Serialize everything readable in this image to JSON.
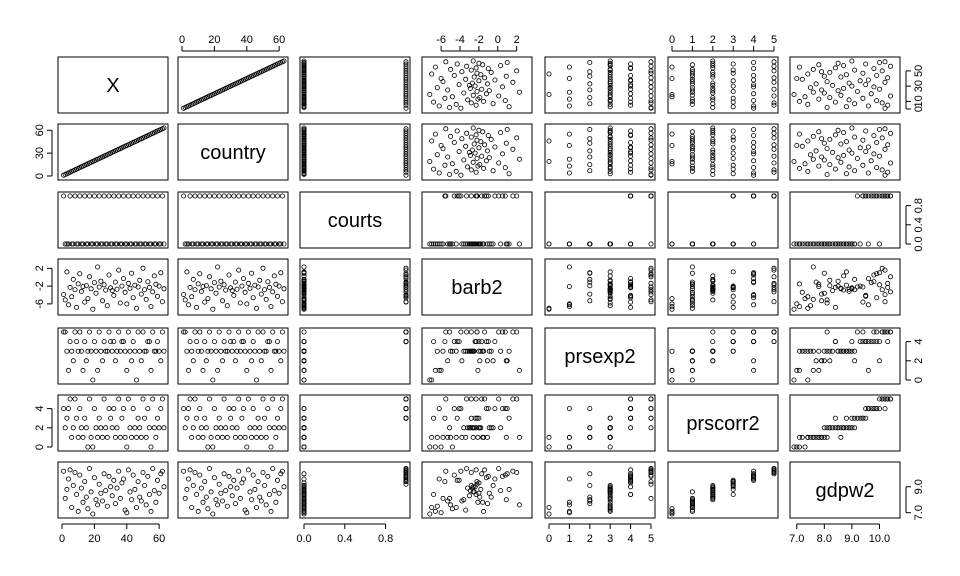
{
  "chart_data": {
    "type": "scatter",
    "subtype": "pairs-matrix",
    "variables": [
      {
        "name": "X",
        "ticks": [
          "0",
          "20",
          "40",
          "60"
        ],
        "tick_values": [
          0,
          20,
          40,
          60
        ],
        "range": [
          0,
          63
        ]
      },
      {
        "name": "country",
        "ticks": [
          "0",
          "20",
          "40",
          "60"
        ],
        "tick_values": [
          0,
          20,
          40,
          60
        ],
        "range": [
          0,
          63
        ]
      },
      {
        "name": "courts",
        "ticks": [
          "0.0",
          "0.4",
          "0.8"
        ],
        "tick_values": [
          0,
          0.4,
          0.8
        ],
        "range": [
          0,
          1
        ]
      },
      {
        "name": "barb2",
        "ticks": [
          "-6",
          "-4",
          "-2",
          "0",
          "2"
        ],
        "tick_values": [
          -6,
          -4,
          -2,
          0,
          2
        ],
        "range": [
          -7.6,
          3.2
        ]
      },
      {
        "name": "prsexp2",
        "ticks": [
          "0",
          "1",
          "2",
          "3",
          "4",
          "5"
        ],
        "tick_values": [
          0,
          1,
          2,
          3,
          4,
          5
        ],
        "range": [
          0,
          5
        ]
      },
      {
        "name": "prscorr2",
        "ticks": [
          "0",
          "1",
          "2",
          "3",
          "4",
          "5"
        ],
        "tick_values": [
          0,
          1,
          2,
          3,
          4,
          5
        ],
        "range": [
          0,
          5
        ]
      },
      {
        "name": "gdpw2",
        "ticks": [
          "7.0",
          "8.0",
          "9.0",
          "10.0"
        ],
        "tick_values": [
          7,
          8,
          9,
          10
        ],
        "range": [
          6.9,
          10.6
        ]
      }
    ],
    "right_axis_ticks": {
      "X": [
        "0",
        "10",
        "30",
        "50"
      ],
      "courts": [
        "0.0",
        "0.4",
        "0.8"
      ],
      "prsexp2": [
        "0",
        "2",
        "4"
      ],
      "gdpw2": [
        "7.0",
        "9.0"
      ]
    },
    "left_axis_ticks": {
      "country": [
        "0",
        "30",
        "60"
      ],
      "barb2": [
        "-6",
        "-2",
        "2"
      ],
      "prscorr2": [
        "0",
        "2",
        "4"
      ]
    },
    "observations": [
      {
        "X": 1,
        "country": 1,
        "courts": 1,
        "barb2": -3.9,
        "prsexp2": 5,
        "prscorr2": 4,
        "gdpw2": 10.2
      },
      {
        "X": 2,
        "country": 2,
        "courts": 0,
        "barb2": -5.1,
        "prsexp2": 5,
        "prscorr2": 2,
        "gdpw2": 8.1
      },
      {
        "X": 3,
        "country": 3,
        "courts": 0,
        "barb2": 1.2,
        "prsexp2": 3,
        "prscorr2": 3,
        "gdpw2": 8.8
      },
      {
        "X": 4,
        "country": 4,
        "courts": 0,
        "barb2": -6.2,
        "prsexp2": 1,
        "prscorr2": 4,
        "gdpw2": 9.6
      },
      {
        "X": 5,
        "country": 5,
        "courts": 1,
        "barb2": -2.3,
        "prsexp2": 4,
        "prscorr2": 5,
        "gdpw2": 10.3
      },
      {
        "X": 6,
        "country": 6,
        "courts": 0,
        "barb2": -4.4,
        "prsexp2": 3,
        "prscorr2": 1,
        "gdpw2": 7.4
      },
      {
        "X": 7,
        "country": 7,
        "courts": 0,
        "barb2": -0.5,
        "prsexp2": 2,
        "prscorr2": 2,
        "gdpw2": 9.1
      },
      {
        "X": 8,
        "country": 8,
        "courts": 1,
        "barb2": -2.8,
        "prsexp2": 5,
        "prscorr2": 5,
        "gdpw2": 10.1
      },
      {
        "X": 9,
        "country": 9,
        "courts": 0,
        "barb2": -6.8,
        "prsexp2": 4,
        "prscorr2": 3,
        "gdpw2": 8.4
      },
      {
        "X": 10,
        "country": 10,
        "courts": 0,
        "barb2": -1.5,
        "prsexp2": 3,
        "prscorr2": 1,
        "gdpw2": 7.1
      },
      {
        "X": 11,
        "country": 11,
        "courts": 1,
        "barb2": 0.8,
        "prsexp2": 5,
        "prscorr2": 4,
        "gdpw2": 9.9
      },
      {
        "X": 12,
        "country": 12,
        "courts": 0,
        "barb2": -3.2,
        "prsexp2": 3,
        "prscorr2": 2,
        "gdpw2": 8.9
      },
      {
        "X": 13,
        "country": 13,
        "courts": 0,
        "barb2": -2.1,
        "prsexp2": 1,
        "prscorr2": 1,
        "gdpw2": 7.8
      },
      {
        "X": 14,
        "country": 14,
        "courts": 1,
        "barb2": -5.6,
        "prsexp2": 4,
        "prscorr2": 3,
        "gdpw2": 9.4
      },
      {
        "X": 15,
        "country": 15,
        "courts": 0,
        "barb2": -1.9,
        "prsexp2": 2,
        "prscorr2": 2,
        "gdpw2": 8.2
      },
      {
        "X": 16,
        "country": 16,
        "courts": 0,
        "barb2": -4.8,
        "prsexp2": 3,
        "prscorr2": 0,
        "gdpw2": 7.3
      },
      {
        "X": 17,
        "country": 17,
        "courts": 1,
        "barb2": 0.1,
        "prsexp2": 5,
        "prscorr2": 5,
        "gdpw2": 10.4
      },
      {
        "X": 18,
        "country": 18,
        "courts": 0,
        "barb2": -2.6,
        "prsexp2": 3,
        "prscorr2": 1,
        "gdpw2": 8.6
      },
      {
        "X": 19,
        "country": 19,
        "courts": 0,
        "barb2": -7.2,
        "prsexp2": 0,
        "prscorr2": 0,
        "gdpw2": 6.9
      },
      {
        "X": 20,
        "country": 20,
        "courts": 1,
        "barb2": -1.2,
        "prsexp2": 4,
        "prscorr2": 4,
        "gdpw2": 9.7
      },
      {
        "X": 21,
        "country": 21,
        "courts": 0,
        "barb2": -3.6,
        "prsexp2": 3,
        "prscorr2": 2,
        "gdpw2": 8.0
      },
      {
        "X": 22,
        "country": 22,
        "courts": 0,
        "barb2": 2.3,
        "prsexp2": 1,
        "prscorr2": 1,
        "gdpw2": 7.6
      },
      {
        "X": 23,
        "country": 23,
        "courts": 1,
        "barb2": -2.2,
        "prsexp2": 5,
        "prscorr2": 3,
        "gdpw2": 9.2
      },
      {
        "X": 24,
        "country": 24,
        "courts": 0,
        "barb2": -0.9,
        "prsexp2": 3,
        "prscorr2": 2,
        "gdpw2": 8.5
      },
      {
        "X": 25,
        "country": 25,
        "courts": 0,
        "barb2": -5.3,
        "prsexp2": 2,
        "prscorr2": 1,
        "gdpw2": 7.9
      },
      {
        "X": 26,
        "country": 26,
        "courts": 1,
        "barb2": -1.7,
        "prsexp2": 4,
        "prscorr2": 5,
        "gdpw2": 10.0
      },
      {
        "X": 27,
        "country": 27,
        "courts": 0,
        "barb2": -2.9,
        "prsexp2": 3,
        "prscorr2": 2,
        "gdpw2": 8.7
      },
      {
        "X": 28,
        "country": 28,
        "courts": 0,
        "barb2": -6.4,
        "prsexp2": 3,
        "prscorr2": 1,
        "gdpw2": 7.5
      },
      {
        "X": 29,
        "country": 29,
        "courts": 1,
        "barb2": 0.5,
        "prsexp2": 5,
        "prscorr2": 4,
        "gdpw2": 9.8
      },
      {
        "X": 30,
        "country": 30,
        "courts": 0,
        "barb2": -2.4,
        "prsexp2": 4,
        "prscorr2": 3,
        "gdpw2": 9.0
      },
      {
        "X": 31,
        "country": 31,
        "courts": 0,
        "barb2": -3.0,
        "prsexp2": 3,
        "prscorr2": 2,
        "gdpw2": 8.3
      },
      {
        "X": 32,
        "country": 32,
        "courts": 1,
        "barb2": -4.1,
        "prsexp2": 4,
        "prscorr2": 4,
        "gdpw2": 9.5
      },
      {
        "X": 33,
        "country": 33,
        "courts": 0,
        "barb2": -1.1,
        "prsexp2": 2,
        "prscorr2": 1,
        "gdpw2": 7.7
      },
      {
        "X": 34,
        "country": 34,
        "courts": 0,
        "barb2": -2.7,
        "prsexp2": 3,
        "prscorr2": 2,
        "gdpw2": 8.9
      },
      {
        "X": 35,
        "country": 35,
        "courts": 1,
        "barb2": 1.6,
        "prsexp2": 5,
        "prscorr2": 5,
        "gdpw2": 10.2
      },
      {
        "X": 36,
        "country": 36,
        "courts": 0,
        "barb2": -5.8,
        "prsexp2": 3,
        "prscorr2": 1,
        "gdpw2": 8.1
      },
      {
        "X": 37,
        "country": 37,
        "courts": 0,
        "barb2": -2.0,
        "prsexp2": 4,
        "prscorr2": 3,
        "gdpw2": 9.3
      },
      {
        "X": 38,
        "country": 38,
        "courts": 1,
        "barb2": -0.3,
        "prsexp2": 4,
        "prscorr2": 4,
        "gdpw2": 9.6
      },
      {
        "X": 39,
        "country": 39,
        "courts": 0,
        "barb2": -3.4,
        "prsexp2": 3,
        "prscorr2": 1,
        "gdpw2": 7.2
      },
      {
        "X": 40,
        "country": 40,
        "courts": 0,
        "barb2": -6.0,
        "prsexp2": 1,
        "prscorr2": 0,
        "gdpw2": 7.0
      },
      {
        "X": 41,
        "country": 41,
        "courts": 1,
        "barb2": -1.4,
        "prsexp2": 5,
        "prscorr2": 5,
        "gdpw2": 10.3
      },
      {
        "X": 42,
        "country": 42,
        "courts": 0,
        "barb2": -2.5,
        "prsexp2": 3,
        "prscorr2": 2,
        "gdpw2": 8.6
      },
      {
        "X": 43,
        "country": 43,
        "courts": 0,
        "barb2": 0.9,
        "prsexp2": 2,
        "prscorr2": 1,
        "gdpw2": 8.0
      },
      {
        "X": 44,
        "country": 44,
        "courts": 1,
        "barb2": -4.6,
        "prsexp2": 4,
        "prscorr2": 4,
        "gdpw2": 9.9
      },
      {
        "X": 45,
        "country": 45,
        "courts": 0,
        "barb2": -1.8,
        "prsexp2": 3,
        "prscorr2": 2,
        "gdpw2": 8.8
      },
      {
        "X": 46,
        "country": 46,
        "courts": 0,
        "barb2": -7.0,
        "prsexp2": 0,
        "prscorr2": 1,
        "gdpw2": 7.4
      },
      {
        "X": 47,
        "country": 47,
        "courts": 1,
        "barb2": -2.2,
        "prsexp2": 5,
        "prscorr2": 3,
        "gdpw2": 9.4
      },
      {
        "X": 48,
        "country": 48,
        "courts": 0,
        "barb2": -0.7,
        "prsexp2": 3,
        "prscorr2": 2,
        "gdpw2": 8.2
      },
      {
        "X": 49,
        "country": 49,
        "courts": 0,
        "barb2": -3.8,
        "prsexp2": 2,
        "prscorr2": 1,
        "gdpw2": 7.9
      },
      {
        "X": 50,
        "country": 50,
        "courts": 1,
        "barb2": 2.0,
        "prsexp2": 5,
        "prscorr2": 5,
        "gdpw2": 10.1
      },
      {
        "X": 51,
        "country": 51,
        "courts": 0,
        "barb2": -2.8,
        "prsexp2": 3,
        "prscorr2": 3,
        "gdpw2": 9.1
      },
      {
        "X": 52,
        "country": 52,
        "courts": 0,
        "barb2": -5.0,
        "prsexp2": 3,
        "prscorr2": 1,
        "gdpw2": 7.6
      },
      {
        "X": 53,
        "country": 53,
        "courts": 1,
        "barb2": -1.0,
        "prsexp2": 4,
        "prscorr2": 4,
        "gdpw2": 9.8
      },
      {
        "X": 54,
        "country": 54,
        "courts": 0,
        "barb2": -2.3,
        "prsexp2": 4,
        "prscorr2": 2,
        "gdpw2": 8.4
      },
      {
        "X": 55,
        "country": 55,
        "courts": 0,
        "barb2": -6.6,
        "prsexp2": 1,
        "prscorr2": 0,
        "gdpw2": 7.1
      },
      {
        "X": 56,
        "country": 56,
        "courts": 1,
        "barb2": -3.3,
        "prsexp2": 5,
        "prscorr2": 5,
        "gdpw2": 10.4
      },
      {
        "X": 57,
        "country": 57,
        "courts": 0,
        "barb2": 0.3,
        "prsexp2": 3,
        "prscorr2": 2,
        "gdpw2": 8.7
      },
      {
        "X": 58,
        "country": 58,
        "courts": 0,
        "barb2": -1.6,
        "prsexp2": 3,
        "prscorr2": 1,
        "gdpw2": 7.8
      },
      {
        "X": 59,
        "country": 59,
        "courts": 1,
        "barb2": -4.3,
        "prsexp2": 4,
        "prscorr2": 3,
        "gdpw2": 9.5
      },
      {
        "X": 60,
        "country": 60,
        "courts": 0,
        "barb2": -2.0,
        "prsexp2": 3,
        "prscorr2": 2,
        "gdpw2": 8.5
      },
      {
        "X": 61,
        "country": 61,
        "courts": 0,
        "barb2": 1.0,
        "prsexp2": 2,
        "prscorr2": 4,
        "gdpw2": 10.0
      },
      {
        "X": 62,
        "country": 62,
        "courts": 1,
        "barb2": -5.5,
        "prsexp2": 5,
        "prscorr2": 5,
        "gdpw2": 10.2
      },
      {
        "X": 63,
        "country": 63,
        "courts": 0,
        "barb2": -2.6,
        "prsexp2": 3,
        "prscorr2": 2,
        "gdpw2": 9.0
      }
    ]
  }
}
